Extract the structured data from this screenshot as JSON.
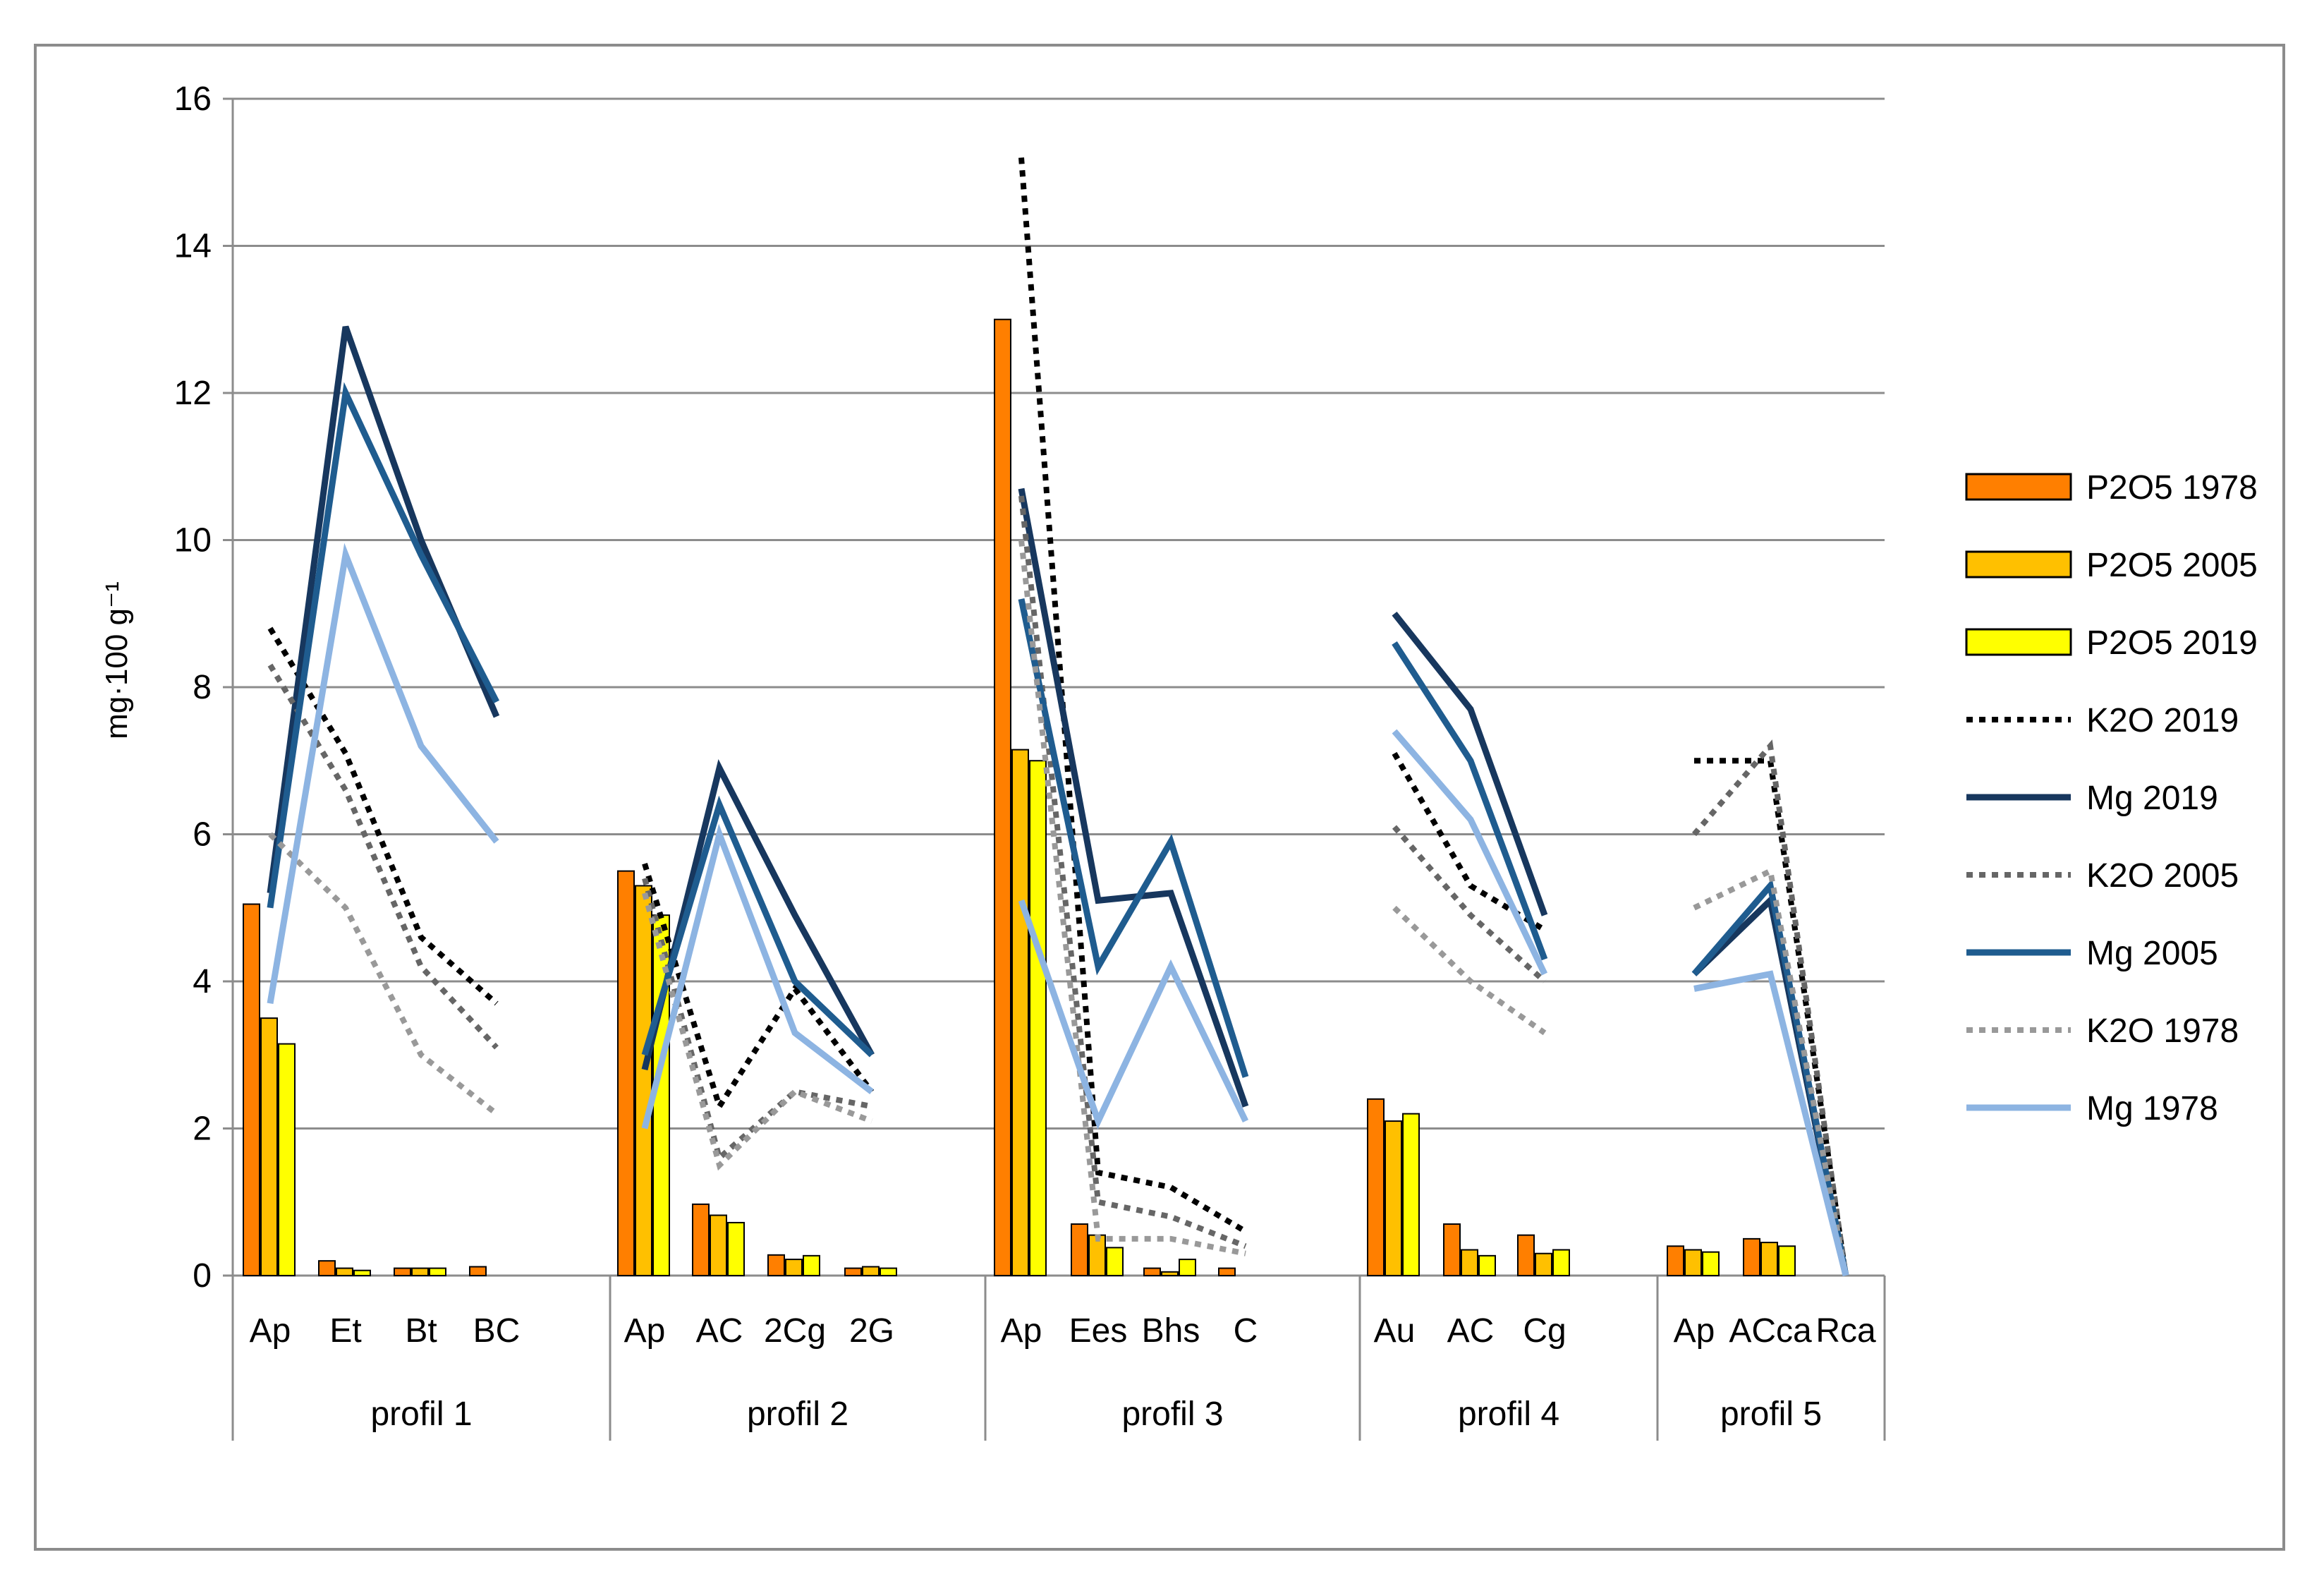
{
  "chart_data": {
    "type": "bar+line",
    "ylabel": "mg·100 g⁻¹",
    "ylim": [
      0,
      16
    ],
    "yticks": [
      "0",
      "2",
      "4",
      "6",
      "8",
      "10",
      "12",
      "14",
      "16"
    ],
    "grid": true,
    "legend_position": "right",
    "categories": [
      "Ap",
      "Et",
      "Bt",
      "BC",
      "Ap",
      "AC",
      "2Cg",
      "2G",
      "Ap",
      "Ees",
      "Bhs",
      "C",
      "Au",
      "AC",
      "Cg",
      "Ap",
      "ACca",
      "Rca"
    ],
    "groups": [
      {
        "label": "profil 1",
        "start": 0,
        "end": 3
      },
      {
        "label": "profil 2",
        "start": 4,
        "end": 7
      },
      {
        "label": "profil 3",
        "start": 8,
        "end": 11
      },
      {
        "label": "profil 4",
        "start": 12,
        "end": 14
      },
      {
        "label": "profil 5",
        "start": 15,
        "end": 17
      }
    ],
    "series": [
      {
        "name": "P2O5 1978",
        "kind": "bar",
        "color": "#FF7F00",
        "values": [
          5.05,
          0.2,
          0.1,
          0.12,
          5.5,
          0.97,
          0.28,
          0.1,
          13.0,
          0.7,
          0.1,
          0.1,
          2.4,
          0.7,
          0.55,
          0.4,
          0.5,
          0
        ]
      },
      {
        "name": "P2O5 2005",
        "kind": "bar",
        "color": "#FFC000",
        "values": [
          3.5,
          0.1,
          0.1,
          0,
          5.3,
          0.82,
          0.22,
          0.12,
          7.15,
          0.55,
          0.05,
          0,
          2.1,
          0.35,
          0.3,
          0.35,
          0.45,
          0
        ]
      },
      {
        "name": "P2O5 2019",
        "kind": "bar",
        "color": "#FFFF00",
        "values": [
          3.15,
          0.07,
          0.1,
          0,
          4.9,
          0.72,
          0.27,
          0.1,
          7.0,
          0.38,
          0.22,
          0,
          2.2,
          0.27,
          0.35,
          0.32,
          0.4,
          0
        ]
      },
      {
        "name": "K2O 2019",
        "kind": "line",
        "style": "dotted",
        "color": "#000000",
        "values": [
          8.8,
          7.1,
          4.6,
          3.7,
          5.6,
          2.3,
          3.9,
          2.5,
          15.2,
          1.4,
          1.2,
          0.6,
          7.1,
          5.3,
          4.7,
          7.0,
          7.0,
          0
        ]
      },
      {
        "name": "Mg 2019",
        "kind": "line",
        "style": "solid",
        "color": "#17375E",
        "values": [
          5.2,
          12.9,
          10.0,
          7.6,
          2.8,
          6.9,
          4.9,
          3.0,
          10.7,
          5.1,
          5.2,
          2.3,
          9.0,
          7.7,
          4.9,
          4.1,
          5.1,
          0
        ]
      },
      {
        "name": "K2O 2005",
        "kind": "line",
        "style": "dotted",
        "color": "#666666",
        "values": [
          8.3,
          6.6,
          4.2,
          3.1,
          5.4,
          1.6,
          2.5,
          2.3,
          10.6,
          1.0,
          0.8,
          0.4,
          6.1,
          4.9,
          4.0,
          6.0,
          7.2,
          0
        ]
      },
      {
        "name": "Mg 2005",
        "kind": "line",
        "style": "solid",
        "color": "#1F5C8F",
        "values": [
          5.0,
          12.0,
          9.8,
          7.8,
          3.0,
          6.4,
          4.0,
          3.0,
          9.2,
          4.2,
          5.9,
          2.7,
          8.6,
          7.0,
          4.3,
          4.1,
          5.3,
          0
        ]
      },
      {
        "name": "K2O 1978",
        "kind": "line",
        "style": "dotted",
        "color": "#999999",
        "values": [
          6.0,
          5.0,
          3.0,
          2.2,
          5.2,
          1.5,
          2.5,
          2.1,
          10.0,
          0.5,
          0.5,
          0.3,
          5.0,
          4.0,
          3.3,
          5.0,
          5.5,
          0
        ]
      },
      {
        "name": "Mg 1978",
        "kind": "line",
        "style": "solid",
        "color": "#8DB4E2",
        "values": [
          3.7,
          9.8,
          7.2,
          5.9,
          2.0,
          6.0,
          3.3,
          2.5,
          5.1,
          2.1,
          4.2,
          2.1,
          7.4,
          6.2,
          4.1,
          3.9,
          4.1,
          0
        ]
      }
    ]
  }
}
